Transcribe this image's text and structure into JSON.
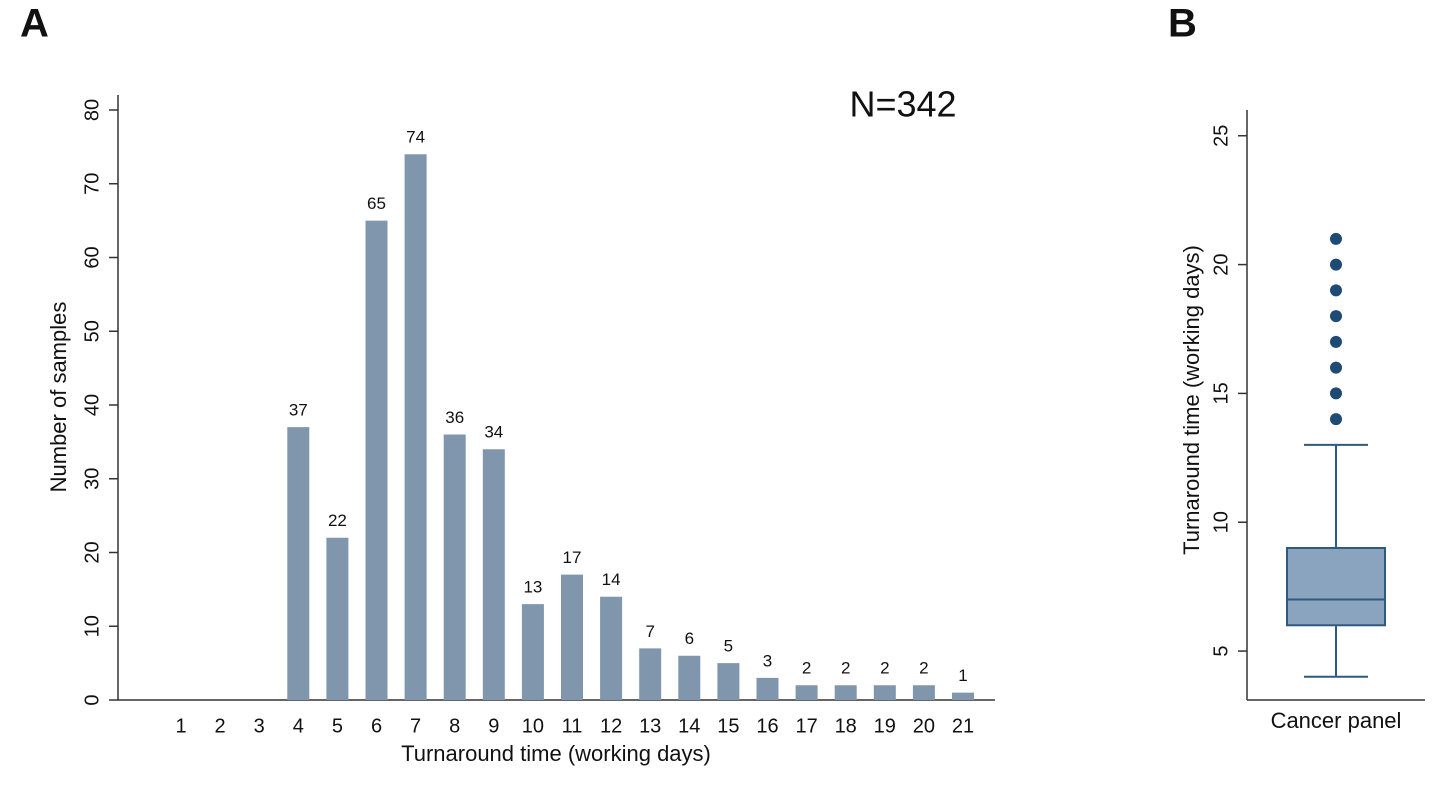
{
  "chart_data": [
    {
      "type": "bar",
      "panel_label": "A",
      "annotation": "N=342",
      "x_label": "Turnaround time (working days)",
      "y_label": "Number of samples",
      "categories": [
        "1",
        "2",
        "3",
        "4",
        "5",
        "6",
        "7",
        "8",
        "9",
        "10",
        "11",
        "12",
        "13",
        "14",
        "15",
        "16",
        "17",
        "18",
        "19",
        "20",
        "21"
      ],
      "values": [
        0,
        0,
        0,
        37,
        22,
        65,
        74,
        36,
        34,
        13,
        17,
        14,
        7,
        6,
        5,
        3,
        2,
        2,
        2,
        2,
        1
      ],
      "color": "#7f96ad",
      "ylim": [
        0,
        80
      ],
      "yticks": [
        0,
        10,
        20,
        30,
        40,
        50,
        60,
        70,
        80
      ]
    },
    {
      "type": "box",
      "panel_label": "B",
      "y_label": "Turnaround time (working days)",
      "categories": [
        "Cancer panel"
      ],
      "boxes": [
        {
          "min": 4,
          "q1": 6,
          "median": 7,
          "q3": 9,
          "max": 13,
          "outliers": [
            14,
            15,
            16,
            17,
            18,
            19,
            20,
            21
          ]
        }
      ],
      "color": "#8aa4bf",
      "line_color": "#2e5a80",
      "outlier_color": "#1f4a73",
      "ylim": [
        3.1,
        26
      ],
      "yticks": [
        5,
        10,
        15,
        20,
        25
      ]
    }
  ]
}
